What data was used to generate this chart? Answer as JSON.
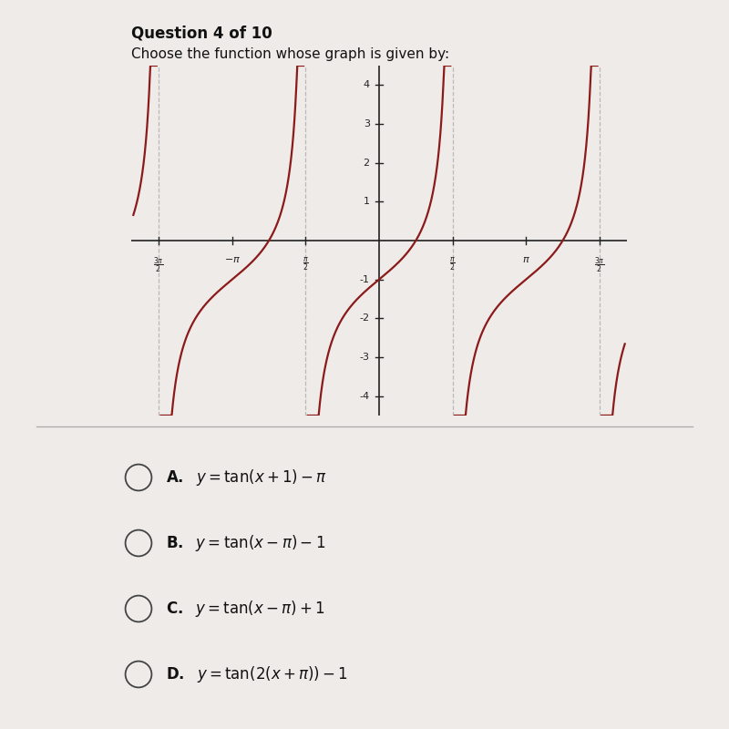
{
  "title": "Question 4 of 10",
  "subtitle": "Choose the function whose graph is given by:",
  "background_color": "#eeebe8",
  "curve_color": "#8b1a1a",
  "axis_color": "#222222",
  "xlim": [
    -5.3,
    5.3
  ],
  "ylim": [
    -4.5,
    4.5
  ],
  "yticks": [
    -4,
    -3,
    -2,
    -1,
    1,
    2,
    3,
    4
  ],
  "option_texts": [
    "A.  y = tan(x + 1) - π",
    "B.  y = tan(x - π) - 1",
    "C.  y = tan(x - π) + 1",
    "D.  y = tan(2(x + π)) - 1"
  ]
}
